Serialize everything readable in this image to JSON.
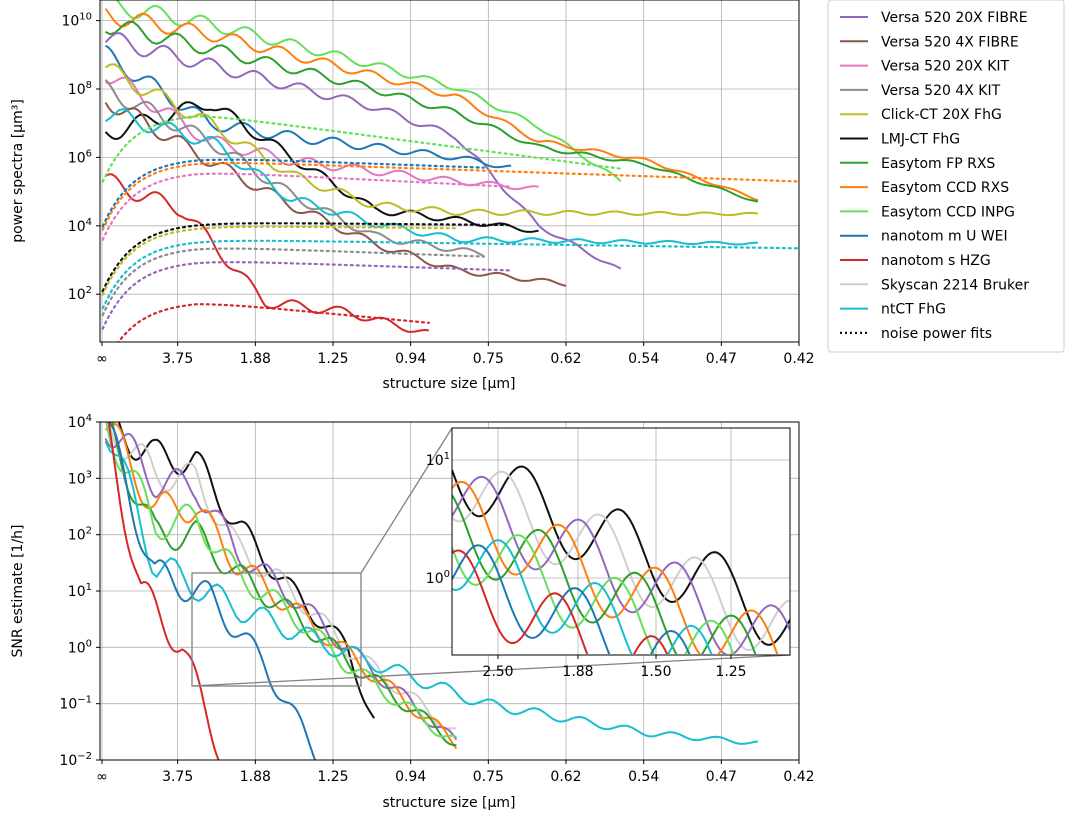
{
  "chart_data": [
    {
      "type": "line",
      "xlabel": "structure size [µm]",
      "ylabel": "power spectra [µm³]",
      "y_scale": "log",
      "ylim": [
        4,
        40000000000
      ],
      "x_tick_labels": [
        "∞",
        "3.75",
        "1.88",
        "1.25",
        "0.94",
        "0.75",
        "0.62",
        "0.54",
        "0.47",
        "0.42"
      ],
      "y_tick_labels": [
        {
          "base": "10",
          "exp": "2",
          "value": 100
        },
        {
          "base": "10",
          "exp": "4",
          "value": 10000
        },
        {
          "base": "10",
          "exp": "6",
          "value": 1000000
        },
        {
          "base": "10",
          "exp": "8",
          "value": 100000000
        },
        {
          "base": "10",
          "exp": "10",
          "value": 10000000000
        }
      ],
      "grid": true,
      "legend_position": "outside right",
      "legend": [
        {
          "label": "Versa 520 20X FIBRE",
          "color": "#9467bd",
          "style": "solid"
        },
        {
          "label": "Versa 520 4X FIBRE",
          "color": "#8c564b",
          "style": "solid"
        },
        {
          "label": "Versa 520 20X KIT",
          "color": "#e377c2",
          "style": "solid"
        },
        {
          "label": "Versa 520 4X KIT",
          "color": "#8c8c8c",
          "style": "solid"
        },
        {
          "label": "Click-CT 20X FhG",
          "color": "#bcbd22",
          "style": "solid"
        },
        {
          "label": "LMJ-CT FhG",
          "color": "#111111",
          "style": "solid"
        },
        {
          "label": "Easytom FP RXS",
          "color": "#2ca02c",
          "style": "solid"
        },
        {
          "label": "Easytom CCD RXS",
          "color": "#ff7f0e",
          "style": "solid"
        },
        {
          "label": "Easytom CCD INPG",
          "color": "#66e05a",
          "style": "solid"
        },
        {
          "label": "nanotom m U WEI",
          "color": "#1f77b4",
          "style": "solid"
        },
        {
          "label": "nanotom s HZG",
          "color": "#d62728",
          "style": "solid"
        },
        {
          "label": "Skyscan 2214 Bruker",
          "color": "#cfcfcf",
          "style": "solid"
        },
        {
          "label": "ntCT FhG",
          "color": "#17becf",
          "style": "solid"
        },
        {
          "label": "noise power fits",
          "color": "#111111",
          "style": "dotted"
        }
      ],
      "series": [
        {
          "name": "Easytom CCD INPG",
          "color": "#66e05a",
          "x": [
            0.02,
            0.4,
            0.7,
            1.0,
            1.3,
            1.6,
            1.9
          ],
          "y": [
            30000000000,
            8000000000,
            2000000000,
            500000000,
            110000000,
            8000000,
            200000
          ]
        },
        {
          "name": "Easytom CCD RXS",
          "color": "#ff7f0e",
          "x": [
            0.02,
            0.4,
            0.7,
            1.0,
            1.3,
            1.6,
            2.0,
            2.4
          ],
          "y": [
            15000000000,
            4000000000,
            1000000000,
            250000000,
            60000000,
            3000000,
            800000,
            60000
          ]
        },
        {
          "name": "Easytom FP RXS",
          "color": "#2ca02c",
          "x": [
            0.02,
            0.4,
            0.7,
            1.0,
            1.3,
            1.6,
            2.0,
            2.4
          ],
          "y": [
            8000000000,
            1500000000,
            400000000,
            100000000,
            20000000,
            2000000,
            600000,
            50000
          ]
        },
        {
          "name": "Versa 520 20X FIBRE",
          "color": "#9467bd",
          "x": [
            0.02,
            0.4,
            0.7,
            1.0,
            1.3,
            1.6,
            1.9
          ],
          "y": [
            3000000000,
            500000000,
            120000000,
            30000000,
            4000000,
            10000,
            500
          ]
        },
        {
          "name": "nanotom m U WEI",
          "color": "#1f77b4",
          "x": [
            0.02,
            0.4,
            0.7,
            1.0,
            1.3,
            1.5
          ],
          "y": [
            1000000000,
            10000000,
            4000000,
            2000000,
            1000000,
            500000
          ]
        },
        {
          "name": "LMJ-CT FhG",
          "color": "#111111",
          "x": [
            0.02,
            0.4,
            0.7,
            1.0,
            1.3,
            1.6
          ],
          "y": [
            5000000,
            40000000,
            1000000,
            30000,
            15000,
            7000
          ]
        },
        {
          "name": "Versa 520 20X KIT",
          "color": "#e377c2",
          "x": [
            0.02,
            0.4,
            0.7,
            1.0,
            1.3,
            1.6
          ],
          "y": [
            300000000,
            3000000,
            800000,
            400000,
            200000,
            120000
          ]
        },
        {
          "name": "Click-CT 20X FhG",
          "color": "#bcbd22",
          "x": [
            0.02,
            0.4,
            0.7,
            1.0,
            1.3,
            2.4
          ],
          "y": [
            400000000,
            10000000,
            300000,
            40000,
            25000,
            22000
          ]
        },
        {
          "name": "Versa 520 4X KIT",
          "color": "#8c8c8c",
          "x": [
            0.02,
            0.4,
            0.7,
            1.0,
            1.3,
            1.4
          ],
          "y": [
            100000000,
            3000000,
            80000,
            5000,
            2000,
            1500
          ]
        },
        {
          "name": "Versa 520 4X FIBRE",
          "color": "#8c564b",
          "x": [
            0.02,
            0.4,
            0.7,
            1.0,
            1.3,
            1.7
          ],
          "y": [
            50000000,
            800000,
            40000,
            3000,
            500,
            200
          ]
        },
        {
          "name": "ntCT FhG",
          "color": "#17becf",
          "x": [
            0.02,
            0.4,
            0.7,
            1.0,
            1.3,
            2.4
          ],
          "y": [
            20000000,
            3000000,
            60000,
            12000,
            4000,
            3000
          ]
        },
        {
          "name": "nanotom s HZG",
          "color": "#d62728",
          "x": [
            0.02,
            0.3,
            0.6,
            0.9,
            1.2
          ],
          "y": [
            200000,
            30000,
            60,
            30,
            7
          ]
        }
      ]
    },
    {
      "type": "line",
      "xlabel": "structure size [µm]",
      "ylabel": "SNR estimate [1/h]",
      "y_scale": "log",
      "ylim": [
        0.01,
        10000
      ],
      "x_tick_labels": [
        "∞",
        "3.75",
        "1.88",
        "1.25",
        "0.94",
        "0.75",
        "0.62",
        "0.54",
        "0.47",
        "0.42"
      ],
      "y_tick_labels": [
        {
          "base": "10",
          "exp": "−2",
          "value": 0.01
        },
        {
          "base": "10",
          "exp": "−1",
          "value": 0.1
        },
        {
          "base": "10",
          "exp": "0",
          "value": 1
        },
        {
          "base": "10",
          "exp": "1",
          "value": 10
        },
        {
          "base": "10",
          "exp": "2",
          "value": 100
        },
        {
          "base": "10",
          "exp": "3",
          "value": 1000
        },
        {
          "base": "10",
          "exp": "4",
          "value": 10000
        }
      ],
      "grid": true,
      "series": [
        {
          "name": "LMJ-CT FhG",
          "color": "#111111",
          "x": [
            0.02,
            0.2,
            0.35,
            0.5,
            0.7,
            0.9,
            1.0
          ],
          "y": [
            10000,
            2500,
            2000,
            150,
            10,
            1,
            0.05
          ]
        },
        {
          "name": "Skyscan 2214 Bruker",
          "color": "#cfcfcf",
          "x": [
            0.02,
            0.2,
            0.35,
            0.5,
            0.7,
            0.9,
            1.3
          ],
          "y": [
            10000,
            1200,
            1000,
            60,
            10,
            1,
            0.03
          ]
        },
        {
          "name": "Versa 520 20X FIBRE",
          "color": "#9467bd",
          "x": [
            0.02,
            0.2,
            0.35,
            0.5,
            0.7,
            0.9,
            1.3
          ],
          "y": [
            10000,
            900,
            700,
            50,
            8,
            1,
            0.02
          ]
        },
        {
          "name": "Easytom CCD RXS",
          "color": "#ff7f0e",
          "x": [
            0.02,
            0.2,
            0.35,
            0.5,
            0.7,
            0.9,
            1.3
          ],
          "y": [
            10000,
            300,
            300,
            30,
            5,
            0.8,
            0.02
          ]
        },
        {
          "name": "Easytom FP RXS",
          "color": "#2ca02c",
          "x": [
            0.02,
            0.2,
            0.35,
            0.5,
            0.7,
            0.9,
            1.3
          ],
          "y": [
            10000,
            100,
            100,
            20,
            4,
            0.6,
            0.02
          ]
        },
        {
          "name": "Easytom CCD INPG",
          "color": "#66e05a",
          "x": [
            0.02,
            0.2,
            0.35,
            0.5,
            0.7,
            0.9,
            1.3
          ],
          "y": [
            10000,
            150,
            200,
            20,
            4,
            0.5,
            0.02
          ]
        },
        {
          "name": "ntCT FhG",
          "color": "#17becf",
          "x": [
            0.02,
            0.2,
            0.5,
            0.9,
            1.4,
            2.0,
            2.4
          ],
          "y": [
            10000,
            30,
            5,
            0.8,
            0.1,
            0.03,
            0.02
          ]
        },
        {
          "name": "nanotom m U WEI",
          "color": "#1f77b4",
          "x": [
            0.02,
            0.2,
            0.4,
            0.6,
            0.8
          ],
          "y": [
            10000,
            20,
            8,
            0.5,
            0.01
          ]
        },
        {
          "name": "nanotom s HZG",
          "color": "#d62728",
          "x": [
            0.02,
            0.15,
            0.3,
            0.45
          ],
          "y": [
            10000,
            10,
            1,
            0.01
          ]
        }
      ],
      "inset": {
        "x_tick_labels": [
          "2.50",
          "1.88",
          "1.50",
          "1.25"
        ],
        "y_tick_labels": [
          {
            "base": "10",
            "exp": "0",
            "value": 1
          },
          {
            "base": "10",
            "exp": "1",
            "value": 10
          }
        ]
      }
    }
  ]
}
